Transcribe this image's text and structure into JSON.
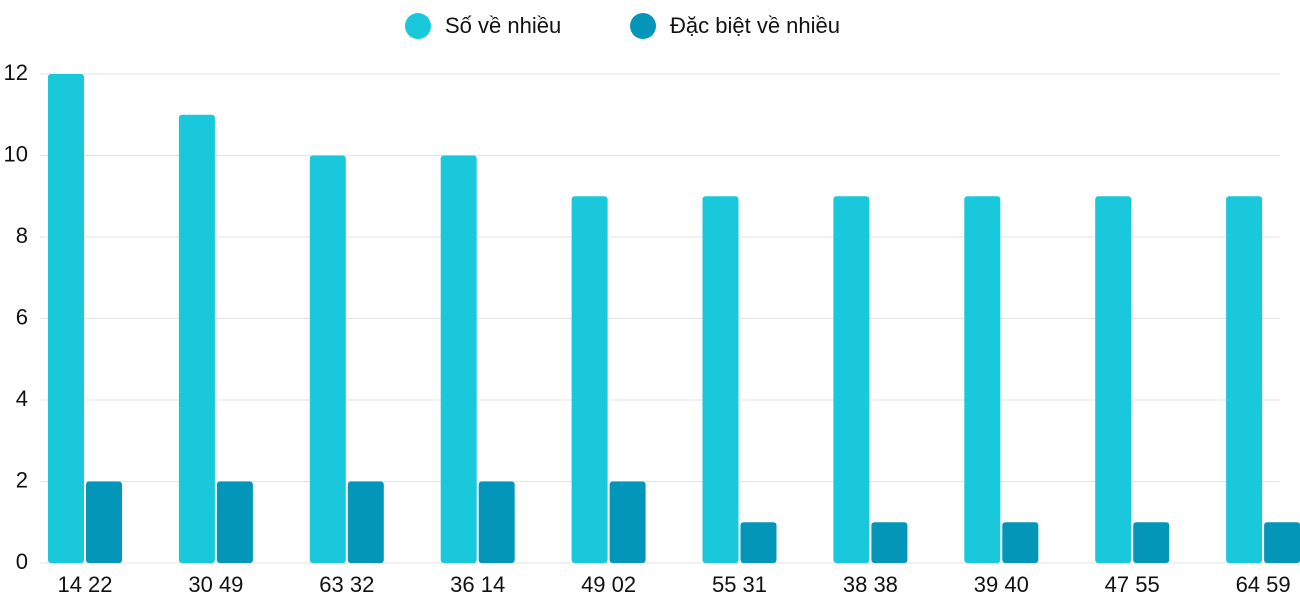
{
  "chart_data": {
    "type": "bar",
    "categories": [
      "14 22",
      "30 49",
      "63 32",
      "36 14",
      "49 02",
      "55 31",
      "38 38",
      "39 40",
      "47 55",
      "64 59"
    ],
    "series": [
      {
        "name": "Số về nhiều",
        "color": "#1ac8db",
        "values": [
          12,
          11,
          10,
          10,
          9,
          9,
          9,
          9,
          9,
          9
        ]
      },
      {
        "name": "Đặc biệt về nhiều",
        "color": "#0396b8",
        "values": [
          2,
          2,
          2,
          2,
          2,
          1,
          1,
          1,
          1,
          1
        ]
      }
    ],
    "ylim": [
      0,
      12
    ],
    "yticks": [
      0,
      2,
      4,
      6,
      8,
      10,
      12
    ],
    "grid": true,
    "legend": "top"
  }
}
